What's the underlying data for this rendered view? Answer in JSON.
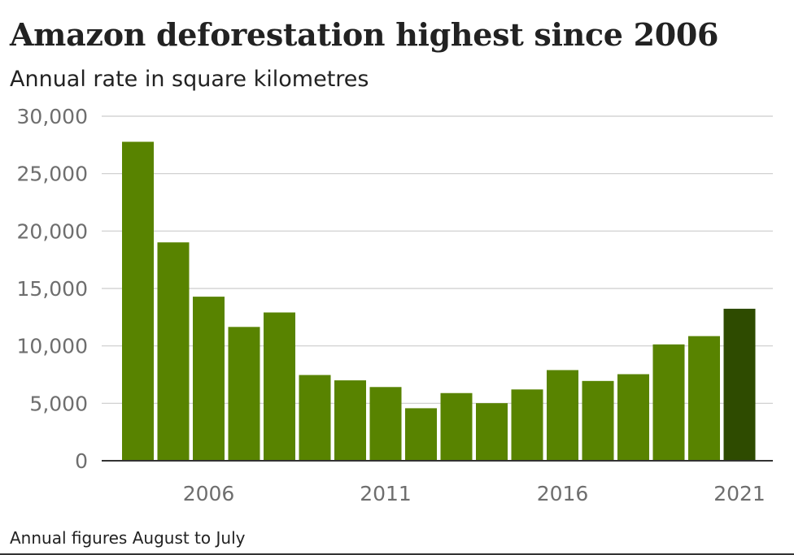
{
  "chart_data": {
    "type": "bar",
    "title": "Amazon deforestation highest since 2006",
    "subtitle": "Annual rate in square kilometres",
    "footer": "Annual figures August to July",
    "categories": [
      2004,
      2005,
      2006,
      2007,
      2008,
      2009,
      2010,
      2011,
      2012,
      2013,
      2014,
      2015,
      2016,
      2017,
      2018,
      2019,
      2020,
      2021
    ],
    "values": [
      27772,
      19014,
      14286,
      11651,
      12911,
      7464,
      7000,
      6418,
      4571,
      5891,
      5012,
      6207,
      7893,
      6947,
      7536,
      10129,
      10851,
      13235
    ],
    "x_tick_labels": [
      "2006",
      "2011",
      "2016",
      "2021"
    ],
    "y_ticks": [
      0,
      5000,
      10000,
      15000,
      20000,
      25000,
      30000
    ],
    "y_tick_labels": [
      "0",
      "5,000",
      "10,000",
      "15,000",
      "20,000",
      "25,000",
      "30,000"
    ],
    "ylim": [
      0,
      30000
    ],
    "grid": true,
    "legend": "none",
    "highlight_category": 2021,
    "bar_color": "#588300",
    "highlight_color": "#2e4b00",
    "grid_color": "#cccccc",
    "axis_color": "#333333"
  }
}
